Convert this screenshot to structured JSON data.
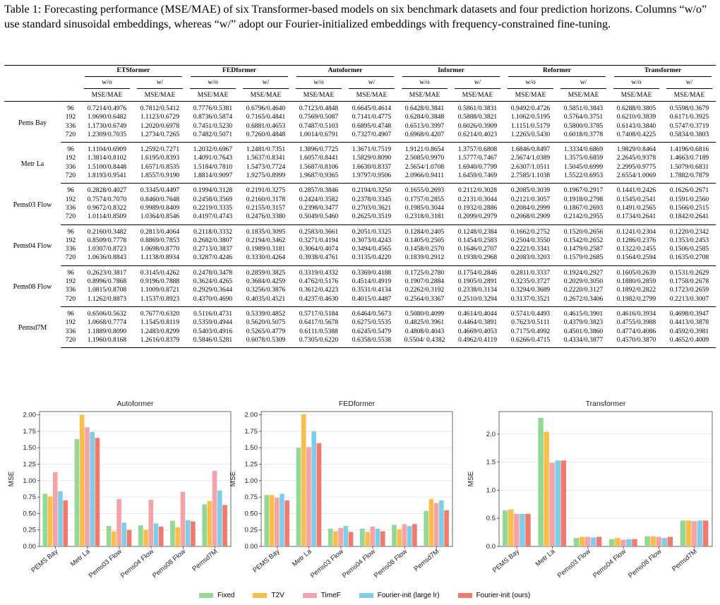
{
  "caption": "Table 1: Forecasting performance (MSE/MAE) of six Transformer-based models on six benchmark datasets and four prediction horizons. Columns “w/o” use standard sinusoidal embeddings, whereas “w/” adopt our Fourier-initialized embeddings with frequency-constrained fine-tuning.",
  "table": {
    "models": [
      "ETSformer",
      "FEDformer",
      "Autoformer",
      "Informer",
      "Reformer",
      "Transformer"
    ],
    "sub_headers": [
      "w/o",
      "w/"
    ],
    "metric": "MSE/MAE",
    "groups": [
      {
        "dataset": "Pems Bay",
        "rows": [
          {
            "h": "96",
            "v": [
              "0.7214/0.4976",
              "0.7812/0.5412",
              "0.7776/0.5381",
              "0.6796/0.4640",
              "0.7123/0.4848",
              "0.6645/0.4614",
              "0.6428/0.3841",
              "0.5861/0.3831",
              "0.9492/0.4726",
              "0.5851/0.3843",
              "0.6288/0.3805",
              "0.5598/0.3679"
            ]
          },
          {
            "h": "192",
            "v": [
              "1.0690/0.6482",
              "1.1123/0.6729",
              "0.8736/0.5874",
              "0.7165/0.4841",
              "0.7569/0.5087",
              "0.7141/0.4775",
              "0.6284/0.3848",
              "0.5888/0.3821",
              "1.1062/0.5195",
              "0.5764/0.3751",
              "0.6210/0.3839",
              "0.6171/0.3925"
            ]
          },
          {
            "h": "336",
            "v": [
              "1.1730/0.6749",
              "1.2020/0.6978",
              "0.7451/0.5230",
              "0.6881/0.4653",
              "0.7487/0.5103",
              "0.6895/0.4748",
              "0.6513/0.3997",
              "0.6026/0.3909",
              "1.1151/0.5179",
              "0.5800/0.3785",
              "0.6143/0.3840",
              "0.5747/0.3719"
            ]
          },
          {
            "h": "720",
            "v": [
              "1.2309/0.7035",
              "1.2734/0.7265",
              "0.7482/0.5071",
              "0.7260/0.4848",
              "1.0014/0.6791",
              "0.7327/0.4907",
              "0.6968/0.4207",
              "0.6214/0.4023",
              "1.2265/0.5430",
              "0.6018/0.3778",
              "0.7408/0.4225",
              "0.5834/0.3803"
            ]
          }
        ]
      },
      {
        "dataset": "Metr La",
        "rows": [
          {
            "h": "96",
            "v": [
              "1.1104/0.6909",
              "1.2592/0.7271",
              "1.2032/0.6967",
              "1.2481/0.7351",
              "1.3896/0.7725",
              "1.3671/0.7519",
              "1.9121/0.8654",
              "1.3757/0.6808",
              "1.6846/0.8497",
              "1.3334/0.6869",
              "1.9829/0.8464",
              "1.4196/0.6816"
            ]
          },
          {
            "h": "192",
            "v": [
              "1.3814/0.8102",
              "1.6195/0.8393",
              "1.4091/0.7643",
              "1.5637/0.8341",
              "1.6057/0.8441",
              "1.5829/0.8090",
              "2.5085/0.9970",
              "1.5777/0.7467",
              "2.5674/1.0389",
              "1.3575/0.6859",
              "2.2645/0.9378",
              "1.4663/0.7189"
            ]
          },
          {
            "h": "336",
            "v": [
              "1.5100/0.8448",
              "1.6571/0.8535",
              "1.5184/0.7810",
              "1.5473/0.7724",
              "1.5687/0.8106",
              "1.6630/0.8337",
              "2.5654/1.0708",
              "1.6940/0.7799",
              "2.6307/1.0511",
              "1.5045/0.6999",
              "2.2995/0.9775",
              "1.5079/0.6831"
            ]
          },
          {
            "h": "720",
            "v": [
              "1.8193/0.9541",
              "1.8557/0.9190",
              "1.8814/0.9097",
              "1.9275/0.8999",
              "1.9687/0.9365",
              "1.9797/0.9506",
              "2.0966/0.9411",
              "1.6459/0.7469",
              "2.7585/1.1038",
              "1.5522/0.6953",
              "2.6554/1.0069",
              "1.7882/0.7879"
            ]
          }
        ]
      },
      {
        "dataset": "Pems03 Flow",
        "rows": [
          {
            "h": "96",
            "v": [
              "0.2828/0.4027",
              "0.3345/0.4497",
              "0.1994/0.3128",
              "0.2191/0.3275",
              "0.2857/0.3846",
              "0.2194/0.3250",
              "0.1655/0.2693",
              "0.2112/0.3028",
              "0.2085/0.3039",
              "0.1967/0.2917",
              "0.1441/0.2426",
              "0.1626/0.2671"
            ]
          },
          {
            "h": "192",
            "v": [
              "0.7574/0.7070",
              "0.8460/0.7648",
              "0.2458/0.3569",
              "0.2160/0.3178",
              "0.2424/0.3582",
              "0.2378/0.3345",
              "0.1757/0.2855",
              "0.2131/0.3044",
              "0.2121/0.3057",
              "0.1918/0.2798",
              "0.1545/0.2541",
              "0.1591/0.2560"
            ]
          },
          {
            "h": "336",
            "v": [
              "0.9672/0.8322",
              "0.9989/0.8409",
              "0.2219/0.3335",
              "0.2155/0.3157",
              "0.2398/0.3477",
              "0.2703/0.3621",
              "0.1985/0.3044",
              "0.1932/0.2886",
              "0.2084/0.2999",
              "0.1867/0.2693",
              "0.1491/0.2565",
              "0.1566/0.2515"
            ]
          },
          {
            "h": "720",
            "v": [
              "1.0114/0.8509",
              "1.0364/0.8546",
              "0.4197/0.4743",
              "0.2476/0.3380",
              "0.5049/0.5460",
              "0.2625/0.3519",
              "0.2318/0.3181",
              "0.2099/0.2979",
              "0.2068/0.2909",
              "0.2142/0.2955",
              "0.1734/0.2641",
              "0.1842/0.2641"
            ]
          }
        ]
      },
      {
        "dataset": "Pems04 Flow",
        "rows": [
          {
            "h": "96",
            "v": [
              "0.2160/0.3482",
              "0.2813/0.4064",
              "0.2118/0.3332",
              "0.1835/0.3095",
              "0.2583/0.3661",
              "0.2051/0.3325",
              "0.1284/0.2405",
              "0.1248/0.2384",
              "0.1662/0.2752",
              "0.1520/0.2656",
              "0.1241/0.2304",
              "0.1220/0.2342"
            ]
          },
          {
            "h": "192",
            "v": [
              "0.8509/0.7778",
              "0.8869/0.7853",
              "0.2682/0.3807",
              "0.2194/0.3462",
              "0.3271/0.4194",
              "0.3073/0.4243",
              "0.1405/0.2505",
              "0.1454/0.2583",
              "0.2504/0.3550",
              "0.1542/0.2652",
              "0.1286/0.2376",
              "0.1353/0.2453"
            ]
          },
          {
            "h": "336",
            "v": [
              "1.0307/0.8723",
              "1.0698/0.8770",
              "0.2713/0.3837",
              "0.1989/0.3181",
              "0.3064/0.4074",
              "0.3494/0.4565",
              "0.1458/0.2570",
              "0.1646/0.2707",
              "0.2221/0.3341",
              "0.1479/0.2587",
              "0.1322/0.2455",
              "0.1506/0.2585"
            ]
          },
          {
            "h": "720",
            "v": [
              "1.0636/0.8843",
              "1.1138/0.8934",
              "0.3287/0.4246",
              "0.3330/0.4264",
              "0.3938/0.4761",
              "0.3135/0.4220",
              "0.1839/0.2912",
              "0.1938/0.2968",
              "0.2083/0.3203",
              "0.1579/0.2685",
              "0.1564/0.2594",
              "0.1635/0.2708"
            ]
          }
        ]
      },
      {
        "dataset": "Pems08 Flow",
        "rows": [
          {
            "h": "96",
            "v": [
              "0.2623/0.3817",
              "0.3145/0.4262",
              "0.2478/0.3478",
              "0.2859/0.3825",
              "0.3319/0.4332",
              "0.3369/0.4188",
              "0.1725/0.2780",
              "0.1754/0.2846",
              "0.2811/0.3337",
              "0.1924/0.2927",
              "0.1605/0.2639",
              "0.1531/0.2629"
            ]
          },
          {
            "h": "192",
            "v": [
              "0.8996/0.7868",
              "0.9196/0.7888",
              "0.3624/0.4265",
              "0.3684/0.4259",
              "0.4762/0.5176",
              "0.4514/0.4919",
              "0.1907/0.2884",
              "0.1905/0.2891",
              "0.3235/0.3727",
              "0.2029/0.3050",
              "0.1880/0.2859",
              "0.1758/0.2678"
            ]
          },
          {
            "h": "336",
            "v": [
              "1.0815/0.8708",
              "1.1009/0.8721",
              "0.2929/0.3644",
              "0.3256/0.3876",
              "0.3612/0.4223",
              "0.3531/0.4134",
              "0.2262/0.3192",
              "0.2338/0.3134",
              "0.3294/0.3689",
              "0.2220/0.3127",
              "0.1892/0.2822",
              "0.1723/0.2659"
            ]
          },
          {
            "h": "720",
            "v": [
              "1.1262/0.8873",
              "1.1537/0.8923",
              "0.4370/0.4690",
              "0.4035/0.4521",
              "0.4237/0.4630",
              "0.4015/0.4487",
              "0.2564/0.3367",
              "0.2510/0.3294",
              "0.3137/0.3521",
              "0.2672/0.3406",
              "0.1982/0.2799",
              "0.2213/0.3007"
            ]
          }
        ]
      },
      {
        "dataset": "Pemsd7M",
        "rows": [
          {
            "h": "96",
            "v": [
              "0.6506/0.5632",
              "0.7677/0.6320",
              "0.5116/0.4731",
              "0.5339/0.4852",
              "0.5717/0.5184",
              "0.6464/0.5673",
              "0.5080/0.4099",
              "0.4614/0.4044",
              "0.5741/0.4493",
              "0.4615/0.3901",
              "0.4616/0.3934",
              "0.4698/0.3947"
            ]
          },
          {
            "h": "192",
            "v": [
              "1.0668/0.7774",
              "1.1545/0.8119",
              "0.5359/0.4944",
              "0.5620/0.5075",
              "0.6417/0.5678",
              "0.6275/0.5535",
              "0.4825/0.3961",
              "0.4464/0.3891",
              "0.7623/0.5111",
              "0.4379/0.3823",
              "0.4755/0.3988",
              "0.4413/0.3878"
            ]
          },
          {
            "h": "336",
            "v": [
              "1.1889/0.8090",
              "1.2483/0.8299",
              "0.5403/0.4916",
              "0.5265/0.4779",
              "0.6111/0.5388",
              "0.6245/0.5479",
              "0.4808/0.4043",
              "0.4669/0.4053",
              "0.7175/0.4992",
              "0.4501/0.3860",
              "0.4774/0.4086",
              "0.4592/0.3981"
            ]
          },
          {
            "h": "720",
            "v": [
              "1.1960/0.8168",
              "1.2616/0.8379",
              "0.5846/0.5281",
              "0.6078/0.5309",
              "0.7305/0.6220",
              "0.6358/0.5538",
              "0.5504/ 0.4382",
              "0.4962/0.4119",
              "0.6266/0.4715",
              "0.4334/0.3877",
              "0.4570/0.3870",
              "0.4652/0.4009"
            ]
          }
        ]
      }
    ]
  },
  "colors": {
    "fixed": "#93d894",
    "t2v": "#fbbd4c",
    "timef": "#f4a3a7",
    "fourier_large": "#80cde8",
    "fourier_ours": "#f27a6d"
  },
  "legend": [
    {
      "key": "fixed",
      "label": "Fixed"
    },
    {
      "key": "t2v",
      "label": "T2V"
    },
    {
      "key": "timef",
      "label": "TimeF"
    },
    {
      "key": "fourier_large",
      "label": "Fourier-init (large lr)"
    },
    {
      "key": "fourier_ours",
      "label": "Fourier-init (ours)"
    }
  ],
  "chart_data": [
    {
      "type": "bar",
      "title": "Autoformer",
      "ylabel": "MSE",
      "ylim": [
        0,
        2.05
      ],
      "yticks": [
        "0.00",
        "0.25",
        "0.50",
        "0.75",
        "1.00",
        "1.25",
        "1.50",
        "1.75",
        "2.00"
      ],
      "ytick_values": [
        0,
        0.25,
        0.5,
        0.75,
        1.0,
        1.25,
        1.5,
        1.75,
        2.0
      ],
      "categories": [
        "PEMS Bay",
        "Metr La",
        "Pems03 Flow",
        "Pems04 Flow",
        "Pems08 Flow",
        "Pemsd7M"
      ],
      "grid": true,
      "series": [
        {
          "name": "Fixed",
          "values": [
            0.8,
            1.63,
            0.31,
            0.32,
            0.39,
            0.64
          ]
        },
        {
          "name": "T2V",
          "values": [
            0.76,
            2.0,
            0.23,
            0.25,
            0.29,
            0.69
          ]
        },
        {
          "name": "TimeF",
          "values": [
            1.13,
            1.81,
            0.72,
            0.71,
            0.83,
            1.15
          ]
        },
        {
          "name": "Fourier-init (large lr)",
          "values": [
            0.84,
            1.74,
            0.36,
            0.35,
            0.4,
            0.85
          ]
        },
        {
          "name": "Fourier-init (ours)",
          "values": [
            0.7,
            1.65,
            0.25,
            0.3,
            0.38,
            0.63
          ]
        }
      ]
    },
    {
      "type": "bar",
      "title": "FEDformer",
      "ylabel": "MSE",
      "ylim": [
        0,
        2.05
      ],
      "yticks": [
        "0.00",
        "0.25",
        "0.50",
        "0.75",
        "1.00",
        "1.25",
        "1.50",
        "1.75",
        "2.00"
      ],
      "ytick_values": [
        0,
        0.25,
        0.5,
        0.75,
        1.0,
        1.25,
        1.5,
        1.75,
        2.0
      ],
      "categories": [
        "PEMS Bay",
        "Metr La",
        "Pems03 Flow",
        "Pems04 Flow",
        "Pems08 Flow",
        "Pemsd7M"
      ],
      "grid": true,
      "series": [
        {
          "name": "Fixed",
          "values": [
            0.78,
            1.5,
            0.27,
            0.27,
            0.33,
            0.54
          ]
        },
        {
          "name": "T2V",
          "values": [
            0.78,
            2.01,
            0.23,
            0.22,
            0.26,
            0.72
          ]
        },
        {
          "name": "TimeF",
          "values": [
            0.74,
            1.51,
            0.28,
            0.3,
            0.34,
            0.66
          ]
        },
        {
          "name": "Fourier-init (large lr)",
          "values": [
            0.8,
            1.75,
            0.31,
            0.27,
            0.31,
            0.7
          ]
        },
        {
          "name": "Fourier-init (ours)",
          "values": [
            0.7,
            1.57,
            0.22,
            0.23,
            0.34,
            0.55
          ]
        }
      ]
    },
    {
      "type": "bar",
      "title": "Transformer",
      "ylabel": "MSE",
      "ylim": [
        0,
        2.4
      ],
      "yticks": [
        "0.0",
        "0.5",
        "1.0",
        "1.5",
        "2.0"
      ],
      "ytick_values": [
        0,
        0.5,
        1.0,
        1.5,
        2.0
      ],
      "categories": [
        "PEMS Bay",
        "Metr La",
        "Pems03 Flow",
        "Pems04 Flow",
        "Pems08 Flow",
        "Pemsd7M"
      ],
      "grid": true,
      "series": [
        {
          "name": "Fixed",
          "values": [
            0.64,
            2.29,
            0.15,
            0.13,
            0.18,
            0.46
          ]
        },
        {
          "name": "T2V",
          "values": [
            0.66,
            2.04,
            0.17,
            0.15,
            0.18,
            0.46
          ]
        },
        {
          "name": "TimeF",
          "values": [
            0.58,
            1.49,
            0.17,
            0.12,
            0.17,
            0.45
          ]
        },
        {
          "name": "Fourier-init (large lr)",
          "values": [
            0.58,
            1.53,
            0.16,
            0.13,
            0.15,
            0.46
          ]
        },
        {
          "name": "Fourier-init (ours)",
          "values": [
            0.58,
            1.53,
            0.17,
            0.13,
            0.17,
            0.46
          ]
        }
      ]
    }
  ]
}
